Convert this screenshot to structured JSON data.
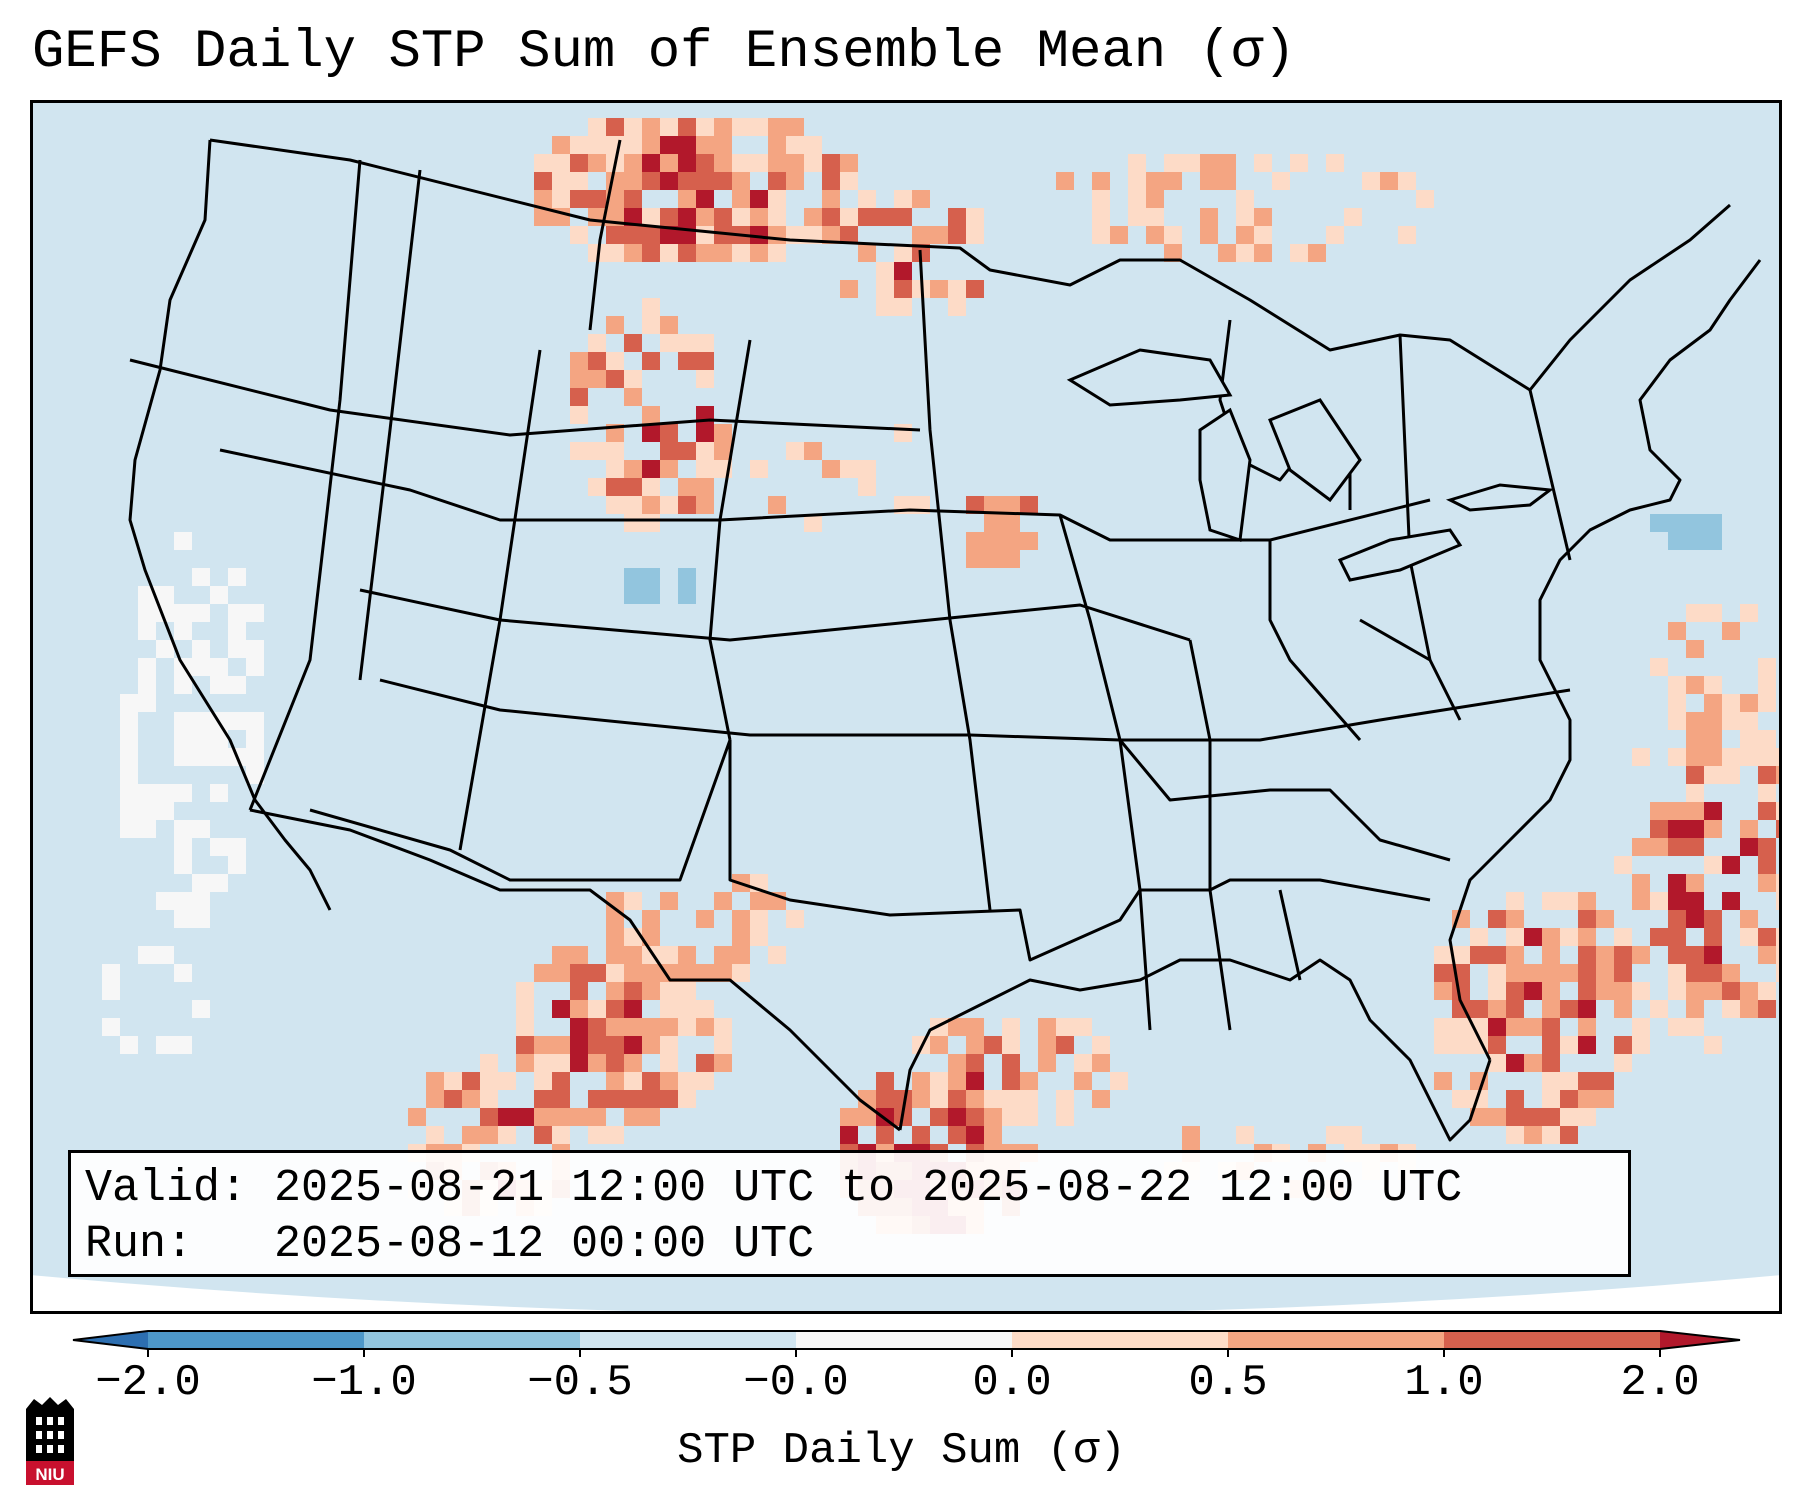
{
  "title": "GEFS Daily STP Sum of Ensemble Mean (σ)",
  "info": {
    "valid_line": "Valid: 2025-08-21 12:00 UTC to 2025-08-22 12:00 UTC",
    "run_line": "Run:   2025-08-12 00:00 UTC"
  },
  "colorbar": {
    "label": "STP Daily Sum (σ)",
    "ticks": [
      "−2.0",
      "−1.0",
      "−0.5",
      "−0.0",
      "0.0",
      "0.5",
      "1.0",
      "2.0"
    ],
    "bins": [
      {
        "range": "<-2.0",
        "color": "#2d6fb1"
      },
      {
        "range": "-2.0 to -1.0",
        "color": "#4d97c8"
      },
      {
        "range": "-1.0 to -0.5",
        "color": "#92c5de"
      },
      {
        "range": "-0.5 to -0.0",
        "color": "#d1e5f0"
      },
      {
        "range": "-0.0 to 0.0",
        "color": "#f7f7f7"
      },
      {
        "range": "0.0 to 0.5",
        "color": "#fddbc7"
      },
      {
        "range": "0.5 to 1.0",
        "color": "#f4a582"
      },
      {
        "range": "1.0 to 2.0",
        "color": "#d6604d"
      },
      {
        "range": ">2.0",
        "color": "#b2182b"
      }
    ]
  },
  "map": {
    "background_color": "#d1e5f0",
    "region": "Continental United States, northern Mexico, Gulf of Mexico",
    "features": [
      "state boundaries",
      "country borders",
      "coastlines",
      "Great Lakes"
    ]
  },
  "logo": {
    "text": "NIU"
  }
}
